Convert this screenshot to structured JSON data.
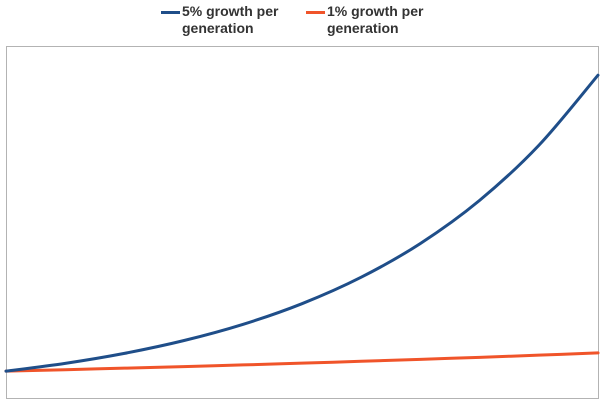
{
  "chart_data": {
    "type": "line",
    "title": "",
    "xlabel": "",
    "ylabel": "",
    "grid": false,
    "legend_position": "top-center",
    "x": [
      0,
      5,
      10,
      15,
      20,
      25,
      30,
      35,
      40,
      45,
      50
    ],
    "series": [
      {
        "name": "5% growth per generation",
        "color": "#1f4e89",
        "values": [
          1.0,
          1.276,
          1.629,
          2.079,
          2.653,
          3.386,
          4.322,
          5.516,
          7.04,
          8.985,
          11.467
        ]
      },
      {
        "name": "1% growth per generation",
        "color": "#f0542a",
        "values": [
          1.0,
          1.051,
          1.105,
          1.161,
          1.22,
          1.282,
          1.348,
          1.417,
          1.489,
          1.565,
          1.645
        ]
      }
    ],
    "xlim": [
      0,
      50
    ],
    "ylim": [
      0.05,
      12.5
    ]
  }
}
